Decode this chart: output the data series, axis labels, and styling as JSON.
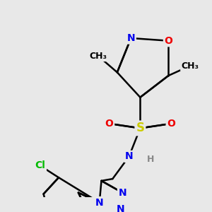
{
  "bg_color": "#e8e8e8",
  "bond_color": "#000000",
  "atom_colors": {
    "N": "#0000ee",
    "O": "#ee0000",
    "S": "#cccc00",
    "Cl": "#00bb00",
    "C": "#000000",
    "H": "#888888"
  },
  "bond_width": 1.8,
  "dbo": 0.08,
  "fs": 10,
  "fs_small": 9
}
